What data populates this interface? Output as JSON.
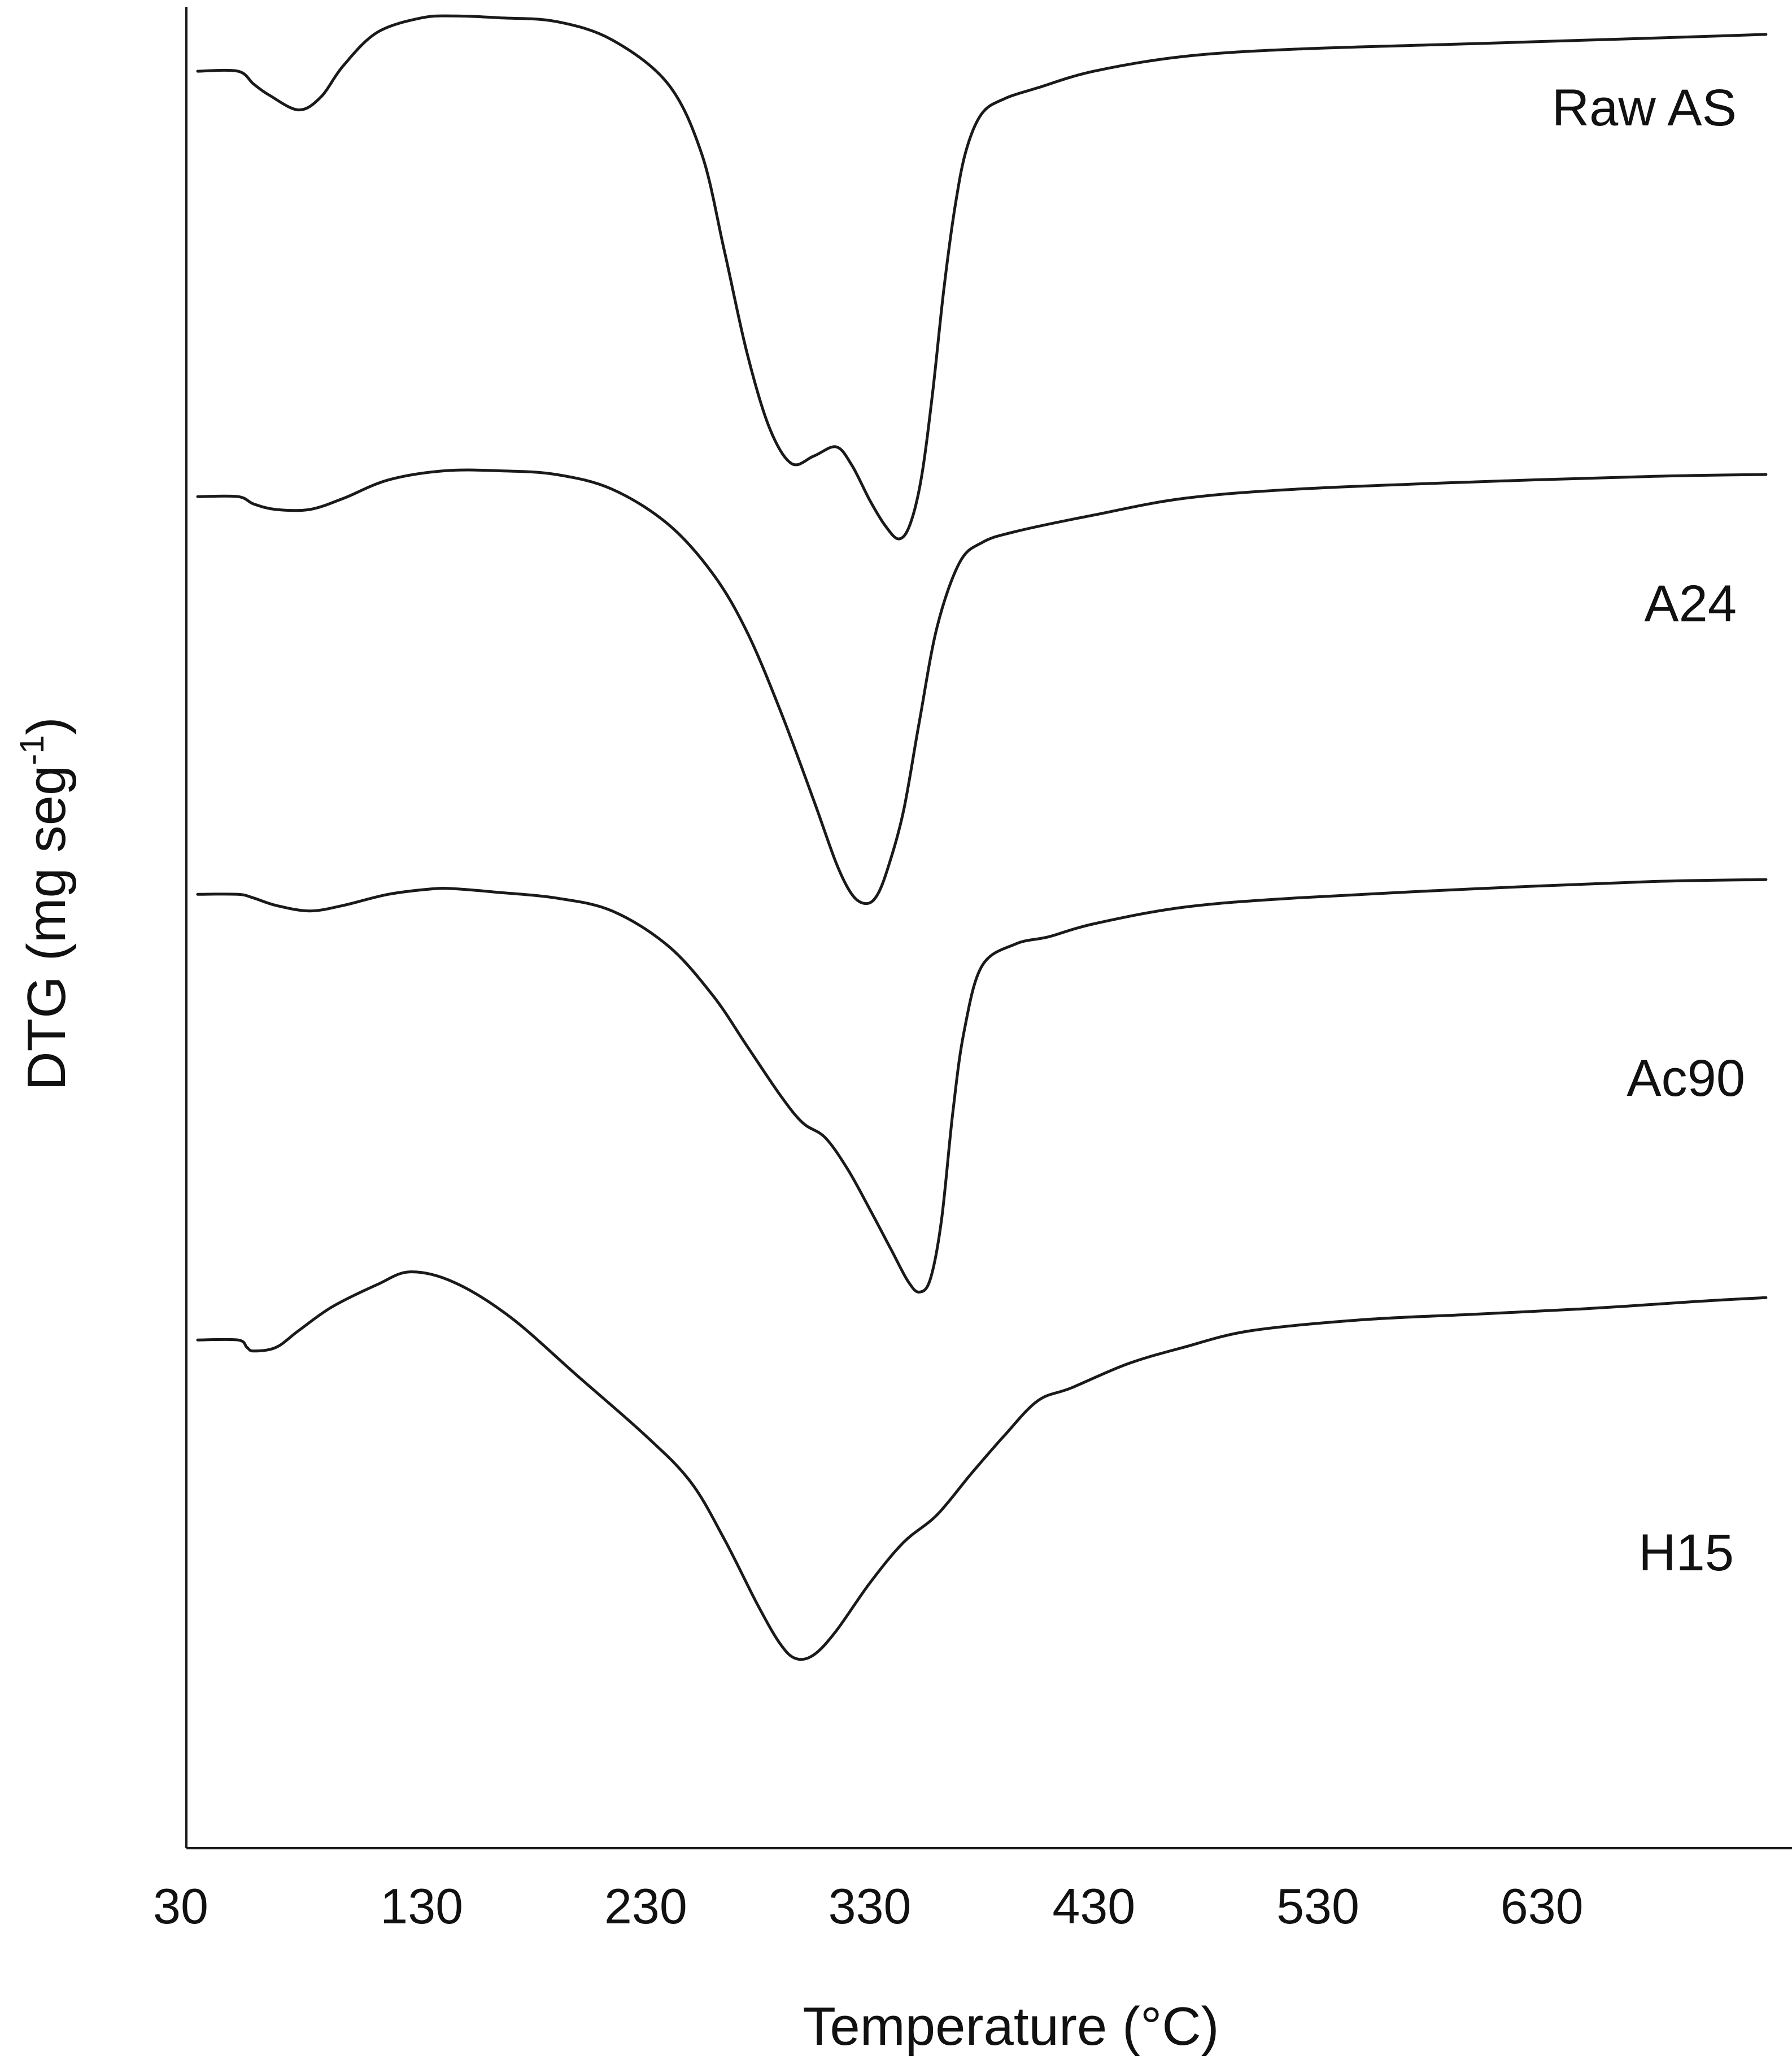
{
  "chart_data": {
    "type": "line",
    "title": "",
    "xlabel": "Temperature (°C)",
    "ylabel_main": "DTG (mg seg",
    "ylabel_sup": "-1",
    "ylabel_close": ")",
    "xlim": [
      30,
      730
    ],
    "ylim": [
      0,
      100
    ],
    "x_ticks": [
      30,
      130,
      230,
      330,
      430,
      530,
      630
    ],
    "x_tick_labels": [
      "30",
      "130",
      "230",
      "330",
      "430",
      "530",
      "630"
    ],
    "y_ticks_shown": false,
    "grid": false,
    "legend": "none",
    "note": "",
    "series": [
      {
        "name": "Raw AS",
        "x": [
          30,
          48,
          55,
          62,
          75,
          85,
          95,
          110,
          130,
          145,
          165,
          190,
          215,
          240,
          255,
          265,
          275,
          285,
          295,
          305,
          315,
          322,
          330,
          337,
          343,
          348,
          353,
          358,
          363,
          368,
          373,
          380,
          390,
          405,
          430,
          470,
          520,
          600,
          680,
          730
        ],
        "y": [
          96.5,
          96.5,
          95.8,
          95.2,
          94.4,
          95.1,
          96.8,
          98.6,
          99.4,
          99.5,
          99.4,
          99.2,
          98.2,
          95.8,
          92.0,
          86.8,
          81.3,
          77.2,
          75.2,
          75.6,
          76.1,
          75.1,
          73.2,
          71.8,
          71.1,
          71.9,
          74.4,
          79.0,
          84.6,
          89.1,
          92.2,
          94.2,
          95.0,
          95.6,
          96.5,
          97.3,
          97.7,
          98.0,
          98.3,
          98.5
        ],
        "color": "#1a1a1a"
      },
      {
        "name": "A24",
        "x": [
          30,
          48,
          55,
          65,
          80,
          95,
          115,
          140,
          165,
          190,
          215,
          240,
          260,
          275,
          290,
          305,
          315,
          322,
          328,
          333,
          338,
          345,
          352,
          360,
          370,
          380,
          395,
          430,
          470,
          520,
          600,
          680,
          730
        ],
        "y": [
          73.4,
          73.4,
          73.0,
          72.7,
          72.7,
          73.3,
          74.3,
          74.8,
          74.8,
          74.6,
          73.8,
          71.9,
          69.2,
          66.1,
          61.8,
          56.9,
          53.5,
          51.8,
          51.3,
          51.7,
          53.2,
          56.3,
          61.1,
          66.3,
          69.8,
          70.9,
          71.5,
          72.4,
          73.3,
          73.8,
          74.2,
          74.5,
          74.6
        ],
        "color": "#1a1a1a"
      },
      {
        "name": "Ac90",
        "x": [
          30,
          48,
          55,
          65,
          80,
          95,
          115,
          135,
          145,
          165,
          190,
          215,
          240,
          260,
          275,
          290,
          300,
          310,
          320,
          330,
          340,
          347,
          352,
          357,
          362,
          367,
          372,
          380,
          395,
          410,
          430,
          470,
          520,
          600,
          680,
          730
        ],
        "y": [
          51.8,
          51.8,
          51.6,
          51.2,
          50.9,
          51.2,
          51.8,
          52.1,
          52.1,
          51.9,
          51.6,
          50.9,
          49.0,
          46.3,
          43.6,
          40.9,
          39.4,
          38.6,
          36.9,
          34.7,
          32.4,
          30.8,
          30.2,
          30.9,
          34.1,
          39.9,
          44.3,
          47.9,
          49.1,
          49.5,
          50.2,
          51.1,
          51.6,
          52.1,
          52.5,
          52.6
        ],
        "color": "#1a1a1a"
      },
      {
        "name": "H15",
        "x": [
          30,
          48,
          52,
          55,
          65,
          75,
          90,
          110,
          125,
          145,
          170,
          200,
          230,
          250,
          265,
          280,
          290,
          297,
          305,
          315,
          330,
          345,
          360,
          375,
          390,
          405,
          420,
          445,
          470,
          500,
          550,
          600,
          650,
          700,
          730
        ],
        "y": [
          27.6,
          27.6,
          27.2,
          27.0,
          27.2,
          28.1,
          29.4,
          30.6,
          31.3,
          30.7,
          28.8,
          25.6,
          22.4,
          19.9,
          16.8,
          13.2,
          11.1,
          10.3,
          10.5,
          11.8,
          14.4,
          16.6,
          18.1,
          20.3,
          22.4,
          24.3,
          25.0,
          26.3,
          27.2,
          28.1,
          28.7,
          29.0,
          29.3,
          29.7,
          29.9
        ],
        "color": "#1a1a1a"
      }
    ]
  }
}
